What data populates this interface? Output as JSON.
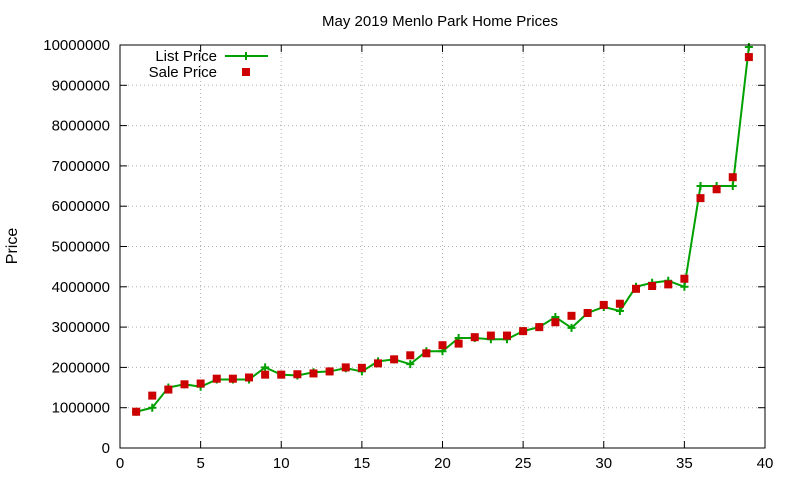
{
  "chart_data": {
    "type": "line",
    "title": "May 2019 Menlo Park Home Prices",
    "xlabel": "",
    "ylabel": "Price",
    "xlim": [
      0,
      40
    ],
    "ylim": [
      0,
      10000000
    ],
    "xticks": [
      0,
      5,
      10,
      15,
      20,
      25,
      30,
      35,
      40
    ],
    "yticks": [
      0,
      1000000,
      2000000,
      3000000,
      4000000,
      5000000,
      6000000,
      7000000,
      8000000,
      9000000,
      10000000
    ],
    "grid": true,
    "legend_position": "top-left",
    "x": [
      1,
      2,
      3,
      4,
      5,
      6,
      7,
      8,
      9,
      10,
      11,
      12,
      13,
      14,
      15,
      16,
      17,
      18,
      19,
      20,
      21,
      22,
      23,
      24,
      25,
      26,
      27,
      28,
      29,
      30,
      31,
      32,
      33,
      34,
      35,
      36,
      37,
      38,
      39
    ],
    "series": [
      {
        "name": "List Price",
        "style": "line+cross",
        "color": "#00a000",
        "values": [
          900000,
          1000000,
          1500000,
          1580000,
          1520000,
          1700000,
          1700000,
          1700000,
          2000000,
          1820000,
          1800000,
          1880000,
          1900000,
          1980000,
          1900000,
          2150000,
          2200000,
          2080000,
          2400000,
          2400000,
          2730000,
          2730000,
          2700000,
          2700000,
          2900000,
          3000000,
          3250000,
          2980000,
          3350000,
          3500000,
          3400000,
          4000000,
          4100000,
          4150000,
          4000000,
          6500000,
          6500000,
          6500000,
          9950000
        ]
      },
      {
        "name": "Sale Price",
        "style": "square",
        "color": "#cc0000",
        "values": [
          900000,
          1300000,
          1450000,
          1580000,
          1600000,
          1720000,
          1720000,
          1750000,
          1820000,
          1820000,
          1830000,
          1850000,
          1900000,
          2000000,
          1990000,
          2100000,
          2200000,
          2300000,
          2350000,
          2550000,
          2590000,
          2750000,
          2790000,
          2790000,
          2900000,
          3000000,
          3120000,
          3280000,
          3350000,
          3550000,
          3580000,
          3950000,
          4020000,
          4060000,
          4200000,
          6200000,
          6420000,
          6720000,
          9700000
        ]
      }
    ]
  }
}
